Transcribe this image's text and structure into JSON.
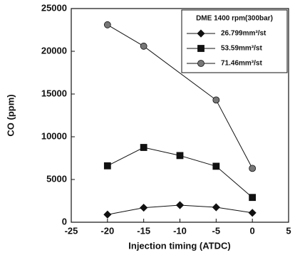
{
  "chart_data": {
    "type": "line",
    "xlabel": "Injection timing (ATDC)",
    "ylabel": "CO (ppm)",
    "legend_title": "DME 1400 rpm(300bar)",
    "legend": "upper right",
    "xlim": [
      -25,
      5
    ],
    "xticks": [
      -25,
      -20,
      -15,
      -10,
      -5,
      0,
      5
    ],
    "ylim": [
      0,
      25000
    ],
    "yticks": [
      0,
      5000,
      10000,
      15000,
      20000,
      25000
    ],
    "grid": false,
    "series": [
      {
        "name": "26.799mm³/st",
        "color": "#111111",
        "marker": "diamond",
        "x": [
          -20,
          -15,
          -10,
          -5,
          0
        ],
        "values": [
          900,
          1700,
          2000,
          1750,
          1100
        ]
      },
      {
        "name": "53.59mm³/st",
        "color": "#111111",
        "marker": "square",
        "x": [
          -20,
          -15,
          -10,
          -5,
          0
        ],
        "values": [
          6600,
          8750,
          7800,
          6550,
          2900
        ]
      },
      {
        "name": "71.46mm³/st",
        "color": "#777777",
        "marker": "circle",
        "x": [
          -20,
          -15,
          -5,
          0
        ],
        "values": [
          23100,
          20600,
          14300,
          6300
        ]
      }
    ]
  }
}
